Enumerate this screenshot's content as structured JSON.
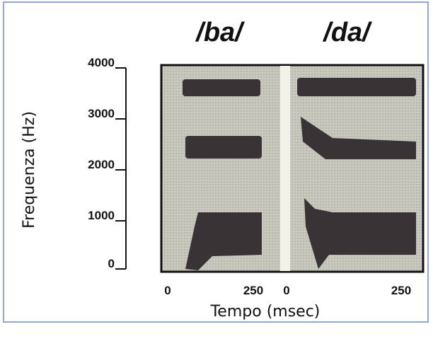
{
  "titles": [
    "/ba/",
    "/da/"
  ],
  "y_axis": {
    "label": "Frequenza (Hz)",
    "ticks": [
      "4000",
      "3000",
      "2000",
      "1000",
      "0"
    ]
  },
  "x_axis": {
    "label": "Tempo (msec)",
    "ticks": [
      "0",
      "250",
      "0",
      "250"
    ]
  }
}
